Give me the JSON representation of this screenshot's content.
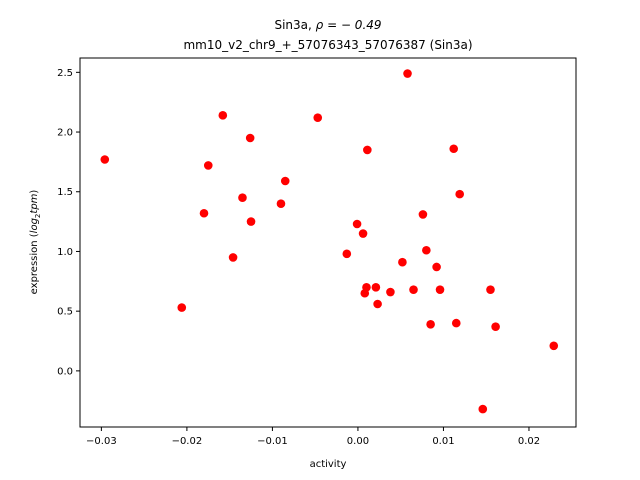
{
  "chart_data": {
    "type": "scatter",
    "title_line1_prefix": "Sin3a, ",
    "title_line1_rho": "ρ = − 0.49",
    "title_line2": "mm10_v2_chr9_+_57076343_57076387 (Sin3a)",
    "xlabel": "activity",
    "ylabel_prefix": "expression (",
    "ylabel_log": "log",
    "ylabel_sub": "2",
    "ylabel_tpm": "tpm",
    "ylabel_suffix": ")",
    "xlim": [
      -0.0325,
      0.0255
    ],
    "ylim": [
      -0.47,
      2.62
    ],
    "x_ticks": [
      -0.03,
      -0.02,
      -0.01,
      0.0,
      0.01,
      0.02
    ],
    "x_tick_labels": [
      "−0.03",
      "−0.02",
      "−0.01",
      "0.00",
      "0.01",
      "0.02"
    ],
    "y_ticks": [
      0.0,
      0.5,
      1.0,
      1.5,
      2.0,
      2.5
    ],
    "y_tick_labels": [
      "0.0",
      "0.5",
      "1.0",
      "1.5",
      "2.0",
      "2.5"
    ],
    "marker_color": "#ff0000",
    "grid": false,
    "points": [
      {
        "x": -0.0296,
        "y": 1.77
      },
      {
        "x": -0.0206,
        "y": 0.53
      },
      {
        "x": -0.018,
        "y": 1.32
      },
      {
        "x": -0.0175,
        "y": 1.72
      },
      {
        "x": -0.0158,
        "y": 2.14
      },
      {
        "x": -0.0146,
        "y": 0.95
      },
      {
        "x": -0.0135,
        "y": 1.45
      },
      {
        "x": -0.0126,
        "y": 1.95
      },
      {
        "x": -0.0125,
        "y": 1.25
      },
      {
        "x": -0.009,
        "y": 1.4
      },
      {
        "x": -0.0085,
        "y": 1.59
      },
      {
        "x": -0.0047,
        "y": 2.12
      },
      {
        "x": -0.0013,
        "y": 0.98
      },
      {
        "x": -0.0001,
        "y": 1.23
      },
      {
        "x": 0.0006,
        "y": 1.15
      },
      {
        "x": 0.0008,
        "y": 0.65
      },
      {
        "x": 0.001,
        "y": 0.7
      },
      {
        "x": 0.0011,
        "y": 1.85
      },
      {
        "x": 0.0021,
        "y": 0.7
      },
      {
        "x": 0.0023,
        "y": 0.56
      },
      {
        "x": 0.0038,
        "y": 0.66
      },
      {
        "x": 0.0052,
        "y": 0.91
      },
      {
        "x": 0.0058,
        "y": 2.49
      },
      {
        "x": 0.0065,
        "y": 0.68
      },
      {
        "x": 0.0076,
        "y": 1.31
      },
      {
        "x": 0.008,
        "y": 1.01
      },
      {
        "x": 0.0085,
        "y": 0.39
      },
      {
        "x": 0.0092,
        "y": 0.87
      },
      {
        "x": 0.0096,
        "y": 0.68
      },
      {
        "x": 0.0112,
        "y": 1.86
      },
      {
        "x": 0.0115,
        "y": 0.4
      },
      {
        "x": 0.0119,
        "y": 1.48
      },
      {
        "x": 0.0146,
        "y": -0.32
      },
      {
        "x": 0.0155,
        "y": 0.68
      },
      {
        "x": 0.0161,
        "y": 0.37
      },
      {
        "x": 0.0229,
        "y": 0.21
      }
    ]
  }
}
